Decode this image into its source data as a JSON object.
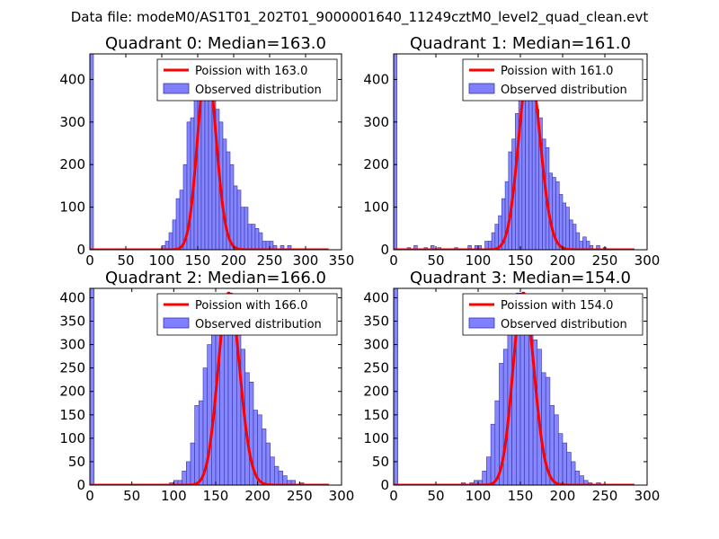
{
  "suptitle": "Data file: modeM0/AS1T01_202T01_9000001640_11249cztM0_level2_quad_clean.evt",
  "chart_data": [
    {
      "type": "bar",
      "title": "Quadrant 0: Median=163.0",
      "median": 163.0,
      "xlim": [
        0,
        350
      ],
      "ylim": [
        0,
        460
      ],
      "xticks": [
        0,
        50,
        100,
        150,
        200,
        250,
        300,
        350
      ],
      "yticks": [
        0,
        100,
        200,
        300,
        400
      ],
      "legend": {
        "poisson_label": "Poission with 163.0",
        "hist_label": "Observed distribution",
        "placement": "top-right"
      },
      "bin_width": 5,
      "bins": [
        {
          "x": 0,
          "count": 460
        },
        {
          "x": 100,
          "count": 10
        },
        {
          "x": 105,
          "count": 20
        },
        {
          "x": 110,
          "count": 40
        },
        {
          "x": 115,
          "count": 70
        },
        {
          "x": 120,
          "count": 120
        },
        {
          "x": 125,
          "count": 140
        },
        {
          "x": 130,
          "count": 200
        },
        {
          "x": 135,
          "count": 300
        },
        {
          "x": 140,
          "count": 310
        },
        {
          "x": 145,
          "count": 360
        },
        {
          "x": 150,
          "count": 380
        },
        {
          "x": 155,
          "count": 420
        },
        {
          "x": 160,
          "count": 440
        },
        {
          "x": 165,
          "count": 420
        },
        {
          "x": 170,
          "count": 360
        },
        {
          "x": 175,
          "count": 330
        },
        {
          "x": 180,
          "count": 300
        },
        {
          "x": 185,
          "count": 260
        },
        {
          "x": 190,
          "count": 230
        },
        {
          "x": 195,
          "count": 200
        },
        {
          "x": 200,
          "count": 150
        },
        {
          "x": 205,
          "count": 140
        },
        {
          "x": 210,
          "count": 100
        },
        {
          "x": 215,
          "count": 100
        },
        {
          "x": 220,
          "count": 60
        },
        {
          "x": 225,
          "count": 60
        },
        {
          "x": 230,
          "count": 50
        },
        {
          "x": 235,
          "count": 40
        },
        {
          "x": 240,
          "count": 20
        },
        {
          "x": 245,
          "count": 20
        },
        {
          "x": 250,
          "count": 20
        },
        {
          "x": 255,
          "count": 10
        },
        {
          "x": 265,
          "count": 10
        },
        {
          "x": 275,
          "count": 10
        }
      ]
    },
    {
      "type": "bar",
      "title": "Quadrant 1: Median=161.0",
      "median": 161.0,
      "xlim": [
        0,
        300
      ],
      "ylim": [
        0,
        460
      ],
      "xticks": [
        0,
        50,
        100,
        150,
        200,
        250,
        300
      ],
      "yticks": [
        0,
        100,
        200,
        300,
        400
      ],
      "legend": {
        "poisson_label": "Poission with 161.0",
        "hist_label": "Observed distribution",
        "placement": "top-right"
      },
      "bin_width": 4,
      "bins": [
        {
          "x": 0,
          "count": 460
        },
        {
          "x": 16,
          "count": 5
        },
        {
          "x": 24,
          "count": 10
        },
        {
          "x": 36,
          "count": 5
        },
        {
          "x": 44,
          "count": 10
        },
        {
          "x": 52,
          "count": 5
        },
        {
          "x": 72,
          "count": 5
        },
        {
          "x": 88,
          "count": 10
        },
        {
          "x": 96,
          "count": 10
        },
        {
          "x": 100,
          "count": 10
        },
        {
          "x": 108,
          "count": 20
        },
        {
          "x": 112,
          "count": 20
        },
        {
          "x": 116,
          "count": 40
        },
        {
          "x": 120,
          "count": 60
        },
        {
          "x": 124,
          "count": 80
        },
        {
          "x": 128,
          "count": 120
        },
        {
          "x": 132,
          "count": 160
        },
        {
          "x": 136,
          "count": 230
        },
        {
          "x": 140,
          "count": 260
        },
        {
          "x": 144,
          "count": 320
        },
        {
          "x": 148,
          "count": 380
        },
        {
          "x": 152,
          "count": 360
        },
        {
          "x": 156,
          "count": 420
        },
        {
          "x": 160,
          "count": 430
        },
        {
          "x": 164,
          "count": 420
        },
        {
          "x": 168,
          "count": 330
        },
        {
          "x": 172,
          "count": 310
        },
        {
          "x": 176,
          "count": 260
        },
        {
          "x": 180,
          "count": 240
        },
        {
          "x": 184,
          "count": 180
        },
        {
          "x": 188,
          "count": 170
        },
        {
          "x": 192,
          "count": 160
        },
        {
          "x": 196,
          "count": 130
        },
        {
          "x": 200,
          "count": 110
        },
        {
          "x": 204,
          "count": 100
        },
        {
          "x": 208,
          "count": 70
        },
        {
          "x": 212,
          "count": 60
        },
        {
          "x": 216,
          "count": 40
        },
        {
          "x": 220,
          "count": 20
        },
        {
          "x": 224,
          "count": 30
        },
        {
          "x": 228,
          "count": 20
        },
        {
          "x": 232,
          "count": 10
        },
        {
          "x": 240,
          "count": 10
        },
        {
          "x": 248,
          "count": 5
        }
      ]
    },
    {
      "type": "bar",
      "title": "Quadrant 2: Median=166.0",
      "median": 166.0,
      "xlim": [
        0,
        300
      ],
      "ylim": [
        0,
        420
      ],
      "xticks": [
        0,
        50,
        100,
        150,
        200,
        250,
        300
      ],
      "yticks": [
        0,
        50,
        100,
        150,
        200,
        250,
        300,
        350,
        400
      ],
      "legend": {
        "poisson_label": "Poission with 166.0",
        "hist_label": "Observed distribution",
        "placement": "top-right"
      },
      "bin_width": 5,
      "bins": [
        {
          "x": 0,
          "count": 420
        },
        {
          "x": 95,
          "count": 5
        },
        {
          "x": 100,
          "count": 10
        },
        {
          "x": 105,
          "count": 10
        },
        {
          "x": 110,
          "count": 30
        },
        {
          "x": 115,
          "count": 50
        },
        {
          "x": 120,
          "count": 90
        },
        {
          "x": 125,
          "count": 170
        },
        {
          "x": 130,
          "count": 180
        },
        {
          "x": 135,
          "count": 250
        },
        {
          "x": 140,
          "count": 300
        },
        {
          "x": 145,
          "count": 340
        },
        {
          "x": 150,
          "count": 380
        },
        {
          "x": 155,
          "count": 400
        },
        {
          "x": 160,
          "count": 380
        },
        {
          "x": 165,
          "count": 410
        },
        {
          "x": 170,
          "count": 350
        },
        {
          "x": 175,
          "count": 320
        },
        {
          "x": 180,
          "count": 290
        },
        {
          "x": 185,
          "count": 240
        },
        {
          "x": 190,
          "count": 220
        },
        {
          "x": 195,
          "count": 160
        },
        {
          "x": 200,
          "count": 150
        },
        {
          "x": 205,
          "count": 120
        },
        {
          "x": 210,
          "count": 90
        },
        {
          "x": 215,
          "count": 60
        },
        {
          "x": 220,
          "count": 40
        },
        {
          "x": 225,
          "count": 30
        },
        {
          "x": 230,
          "count": 20
        },
        {
          "x": 235,
          "count": 10
        },
        {
          "x": 240,
          "count": 10
        },
        {
          "x": 250,
          "count": 5
        }
      ]
    },
    {
      "type": "bar",
      "title": "Quadrant 3: Median=154.0",
      "median": 154.0,
      "xlim": [
        0,
        300
      ],
      "ylim": [
        0,
        420
      ],
      "xticks": [
        0,
        50,
        100,
        150,
        200,
        250,
        300
      ],
      "yticks": [
        0,
        50,
        100,
        150,
        200,
        250,
        300,
        350,
        400
      ],
      "legend": {
        "poisson_label": "Poission with 154.0",
        "hist_label": "Observed distribution",
        "placement": "top-right"
      },
      "bin_width": 5,
      "bins": [
        {
          "x": 0,
          "count": 420
        },
        {
          "x": 80,
          "count": 5
        },
        {
          "x": 90,
          "count": 5
        },
        {
          "x": 95,
          "count": 10
        },
        {
          "x": 100,
          "count": 10
        },
        {
          "x": 105,
          "count": 30
        },
        {
          "x": 110,
          "count": 60
        },
        {
          "x": 115,
          "count": 130
        },
        {
          "x": 120,
          "count": 180
        },
        {
          "x": 125,
          "count": 260
        },
        {
          "x": 130,
          "count": 290
        },
        {
          "x": 135,
          "count": 340
        },
        {
          "x": 140,
          "count": 370
        },
        {
          "x": 145,
          "count": 410
        },
        {
          "x": 150,
          "count": 410
        },
        {
          "x": 155,
          "count": 390
        },
        {
          "x": 160,
          "count": 360
        },
        {
          "x": 165,
          "count": 310
        },
        {
          "x": 170,
          "count": 290
        },
        {
          "x": 175,
          "count": 240
        },
        {
          "x": 180,
          "count": 230
        },
        {
          "x": 185,
          "count": 170
        },
        {
          "x": 190,
          "count": 150
        },
        {
          "x": 195,
          "count": 110
        },
        {
          "x": 200,
          "count": 90
        },
        {
          "x": 205,
          "count": 70
        },
        {
          "x": 210,
          "count": 50
        },
        {
          "x": 215,
          "count": 30
        },
        {
          "x": 220,
          "count": 20
        },
        {
          "x": 225,
          "count": 10
        },
        {
          "x": 230,
          "count": 5
        },
        {
          "x": 240,
          "count": 5
        }
      ]
    }
  ],
  "colors": {
    "hist_fill": "#8080ff",
    "hist_edge": "#3333aa",
    "poisson_line": "#ff0000"
  }
}
